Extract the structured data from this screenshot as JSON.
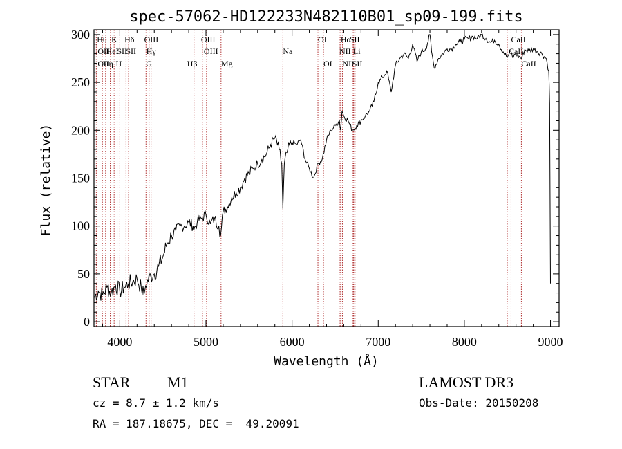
{
  "chart_data": {
    "type": "line",
    "title": "spec-57062-HD122233N482110B01_sp09-199.fits",
    "xlabel": "Wavelength (Å)",
    "ylabel": "Flux (relative)",
    "xlim": [
      3700,
      9100
    ],
    "ylim": [
      -5,
      305
    ],
    "xticks": [
      4000,
      5000,
      6000,
      7000,
      8000,
      9000
    ],
    "yticks": [
      0,
      50,
      100,
      150,
      200,
      250,
      300
    ],
    "series": [
      {
        "name": "spectrum",
        "x": [
          3700,
          3750,
          3800,
          3850,
          3900,
          3950,
          4000,
          4050,
          4100,
          4150,
          4200,
          4250,
          4280,
          4300,
          4350,
          4400,
          4450,
          4500,
          4550,
          4600,
          4650,
          4700,
          4750,
          4800,
          4850,
          4860,
          4900,
          4950,
          5000,
          5050,
          5100,
          5150,
          5170,
          5200,
          5250,
          5300,
          5350,
          5400,
          5450,
          5500,
          5550,
          5600,
          5650,
          5700,
          5750,
          5800,
          5850,
          5880,
          5893,
          5910,
          5950,
          6000,
          6050,
          6100,
          6150,
          6200,
          6250,
          6300,
          6350,
          6400,
          6450,
          6500,
          6550,
          6563,
          6580,
          6600,
          6650,
          6700,
          6750,
          6800,
          6850,
          6900,
          6950,
          7000,
          7050,
          7100,
          7150,
          7200,
          7250,
          7300,
          7350,
          7400,
          7450,
          7500,
          7550,
          7600,
          7620,
          7650,
          7700,
          7750,
          7800,
          7850,
          7900,
          7950,
          8000,
          8050,
          8100,
          8150,
          8200,
          8250,
          8300,
          8350,
          8400,
          8450,
          8498,
          8520,
          8542,
          8560,
          8600,
          8662,
          8700,
          8750,
          8800,
          8850,
          8900,
          8950,
          8980,
          8990,
          9000
        ],
        "y": [
          25,
          32,
          28,
          36,
          30,
          38,
          32,
          36,
          40,
          42,
          45,
          35,
          28,
          38,
          48,
          50,
          58,
          68,
          82,
          90,
          95,
          100,
          100,
          104,
          100,
          96,
          105,
          108,
          112,
          102,
          108,
          100,
          90,
          115,
          120,
          130,
          135,
          140,
          150,
          155,
          160,
          165,
          170,
          175,
          185,
          192,
          180,
          165,
          118,
          165,
          180,
          188,
          185,
          190,
          170,
          160,
          150,
          165,
          170,
          190,
          200,
          205,
          210,
          200,
          220,
          215,
          210,
          200,
          205,
          210,
          215,
          220,
          230,
          250,
          255,
          262,
          240,
          268,
          275,
          280,
          275,
          290,
          272,
          282,
          285,
          300,
          282,
          265,
          275,
          280,
          285,
          285,
          290,
          292,
          295,
          296,
          298,
          296,
          300,
          296,
          292,
          294,
          290,
          282,
          276,
          280,
          282,
          276,
          280,
          275,
          284,
          283,
          285,
          282,
          280,
          275,
          262,
          228,
          40
        ]
      }
    ],
    "line_markers": [
      {
        "label": "Hθ",
        "x": 3798,
        "row": 1,
        "offset": -8
      },
      {
        "label": "OII",
        "x": 3727,
        "row": 2,
        "offset": 2
      },
      {
        "label": "OII",
        "x": 3727,
        "row": 3,
        "offset": 2
      },
      {
        "label": "Hη",
        "x": 3835,
        "row": 3,
        "offset": -4
      },
      {
        "label": "HeI",
        "x": 3889,
        "row": 2,
        "offset": -6
      },
      {
        "label": "K",
        "x": 3934,
        "row": 1,
        "offset": -4
      },
      {
        "label": "SII",
        "x": 4000,
        "row": 2,
        "offset": -4
      },
      {
        "label": "H",
        "x": 3969,
        "row": 3,
        "offset": -2
      },
      {
        "label": "Hδ",
        "x": 4102,
        "row": 1,
        "offset": -6
      },
      {
        "label": "SII",
        "x": 4072,
        "row": 2,
        "offset": 0
      },
      {
        "label": "OIII",
        "x": 4363,
        "row": 1,
        "offset": -10
      },
      {
        "label": "Hγ",
        "x": 4340,
        "row": 2,
        "offset": -4
      },
      {
        "label": "G",
        "x": 4304,
        "row": 3,
        "offset": 0
      },
      {
        "label": "Hβ",
        "x": 4861,
        "row": 3,
        "offset": -10
      },
      {
        "label": "OIII",
        "x": 5007,
        "row": 1,
        "offset": -8
      },
      {
        "label": "OIII",
        "x": 4959,
        "row": 2,
        "offset": 2
      },
      {
        "label": "Mg",
        "x": 5175,
        "row": 3,
        "offset": 0
      },
      {
        "label": "Na",
        "x": 5893,
        "row": 2,
        "offset": 0
      },
      {
        "label": "OI",
        "x": 6300,
        "row": 1,
        "offset": 0
      },
      {
        "label": "OI",
        "x": 6364,
        "row": 3,
        "offset": 0
      },
      {
        "label": "Hα",
        "x": 6563,
        "row": 1,
        "offset": 0
      },
      {
        "label": "SII",
        "x": 6716,
        "row": 1,
        "offset": -6
      },
      {
        "label": "NII",
        "x": 6548,
        "row": 2,
        "offset": 0
      },
      {
        "label": "Li",
        "x": 6708,
        "row": 2,
        "offset": 0
      },
      {
        "label": "NII",
        "x": 6584,
        "row": 3,
        "offset": 0
      },
      {
        "label": "SII",
        "x": 6731,
        "row": 3,
        "offset": -4
      },
      {
        "label": "CaII",
        "x": 8542,
        "row": 1,
        "offset": 0
      },
      {
        "label": "CaII",
        "x": 8498,
        "row": 2,
        "offset": 2
      },
      {
        "label": "CaII",
        "x": 8662,
        "row": 3,
        "offset": 0
      }
    ],
    "marker_lines": [
      3727,
      3798,
      3835,
      3889,
      3934,
      3969,
      4000,
      4072,
      4102,
      4304,
      4340,
      4363,
      4861,
      4959,
      5007,
      5175,
      5893,
      6300,
      6364,
      6548,
      6563,
      6584,
      6708,
      6716,
      6731,
      8498,
      8542,
      8662
    ]
  },
  "footer": {
    "object_class": "STAR",
    "subclass": "M1",
    "survey": "LAMOST DR3",
    "cz": "cz = 8.7 ± 1.2 km/s",
    "obs_date": "Obs-Date: 20150208",
    "coords": "RA = 187.18675, DEC =  49.20091"
  },
  "colors": {
    "axis": "#000000",
    "spectrum": "#000000",
    "marker_line": "#b03030"
  }
}
